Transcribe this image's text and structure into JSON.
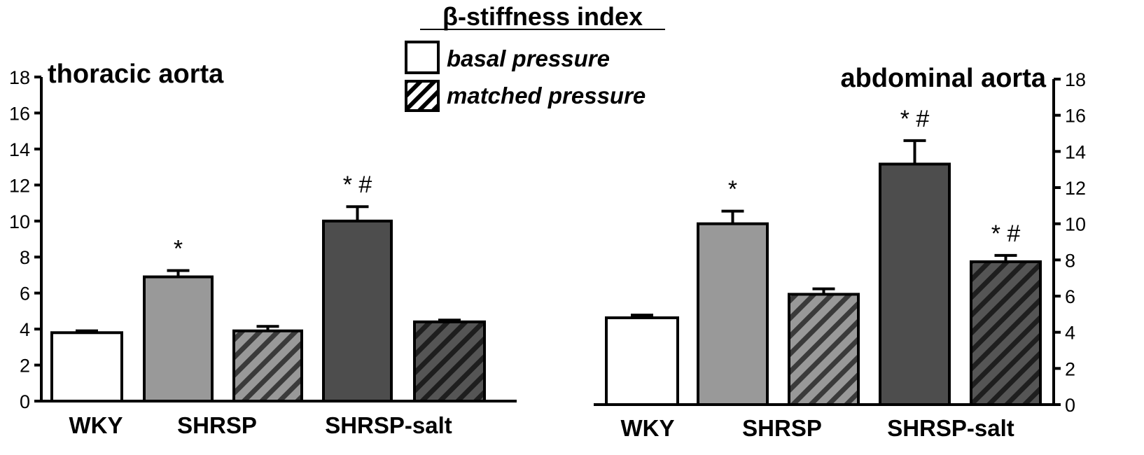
{
  "chart_data": {
    "type": "bar",
    "title": "β-stiffness index",
    "legend": {
      "placement": "top-center",
      "entries": [
        {
          "label": "basal pressure",
          "pattern": "solid"
        },
        {
          "label": "matched pressure",
          "pattern": "hatched"
        }
      ]
    },
    "ylim": [
      0,
      18
    ],
    "yticks": [
      0,
      2,
      4,
      6,
      8,
      10,
      12,
      14,
      16,
      18
    ],
    "grid": false,
    "colors": {
      "WKY": "#ffffff",
      "SHRSP": "#999999",
      "SHRSP-salt": "#4d4d4d",
      "edge": "#000000"
    },
    "categories": [
      "WKY",
      "SHRSP",
      "SHRSP-salt"
    ],
    "panels": [
      {
        "title": "thoracic aorta",
        "y_axis_side": "left",
        "bars": [
          {
            "group": "WKY",
            "condition": "basal pressure",
            "value": 3.8,
            "error": 0.1,
            "annotation": ""
          },
          {
            "group": "SHRSP",
            "condition": "basal pressure",
            "value": 6.9,
            "error": 0.35,
            "annotation": "*"
          },
          {
            "group": "SHRSP",
            "condition": "matched pressure",
            "value": 3.9,
            "error": 0.25,
            "annotation": ""
          },
          {
            "group": "SHRSP-salt",
            "condition": "basal pressure",
            "value": 10.0,
            "error": 0.8,
            "annotation": "* #"
          },
          {
            "group": "SHRSP-salt",
            "condition": "matched pressure",
            "value": 4.4,
            "error": 0.1,
            "annotation": ""
          }
        ]
      },
      {
        "title": "abdominal aorta",
        "y_axis_side": "right",
        "bars": [
          {
            "group": "WKY",
            "condition": "basal pressure",
            "value": 4.8,
            "error": 0.15,
            "annotation": ""
          },
          {
            "group": "SHRSP",
            "condition": "basal pressure",
            "value": 10.0,
            "error": 0.7,
            "annotation": "*"
          },
          {
            "group": "SHRSP",
            "condition": "matched pressure",
            "value": 6.1,
            "error": 0.3,
            "annotation": ""
          },
          {
            "group": "SHRSP-salt",
            "condition": "basal pressure",
            "value": 13.3,
            "error": 1.3,
            "annotation": "* #"
          },
          {
            "group": "SHRSP-salt",
            "condition": "matched pressure",
            "value": 7.9,
            "error": 0.35,
            "annotation": "* #"
          }
        ]
      }
    ]
  }
}
